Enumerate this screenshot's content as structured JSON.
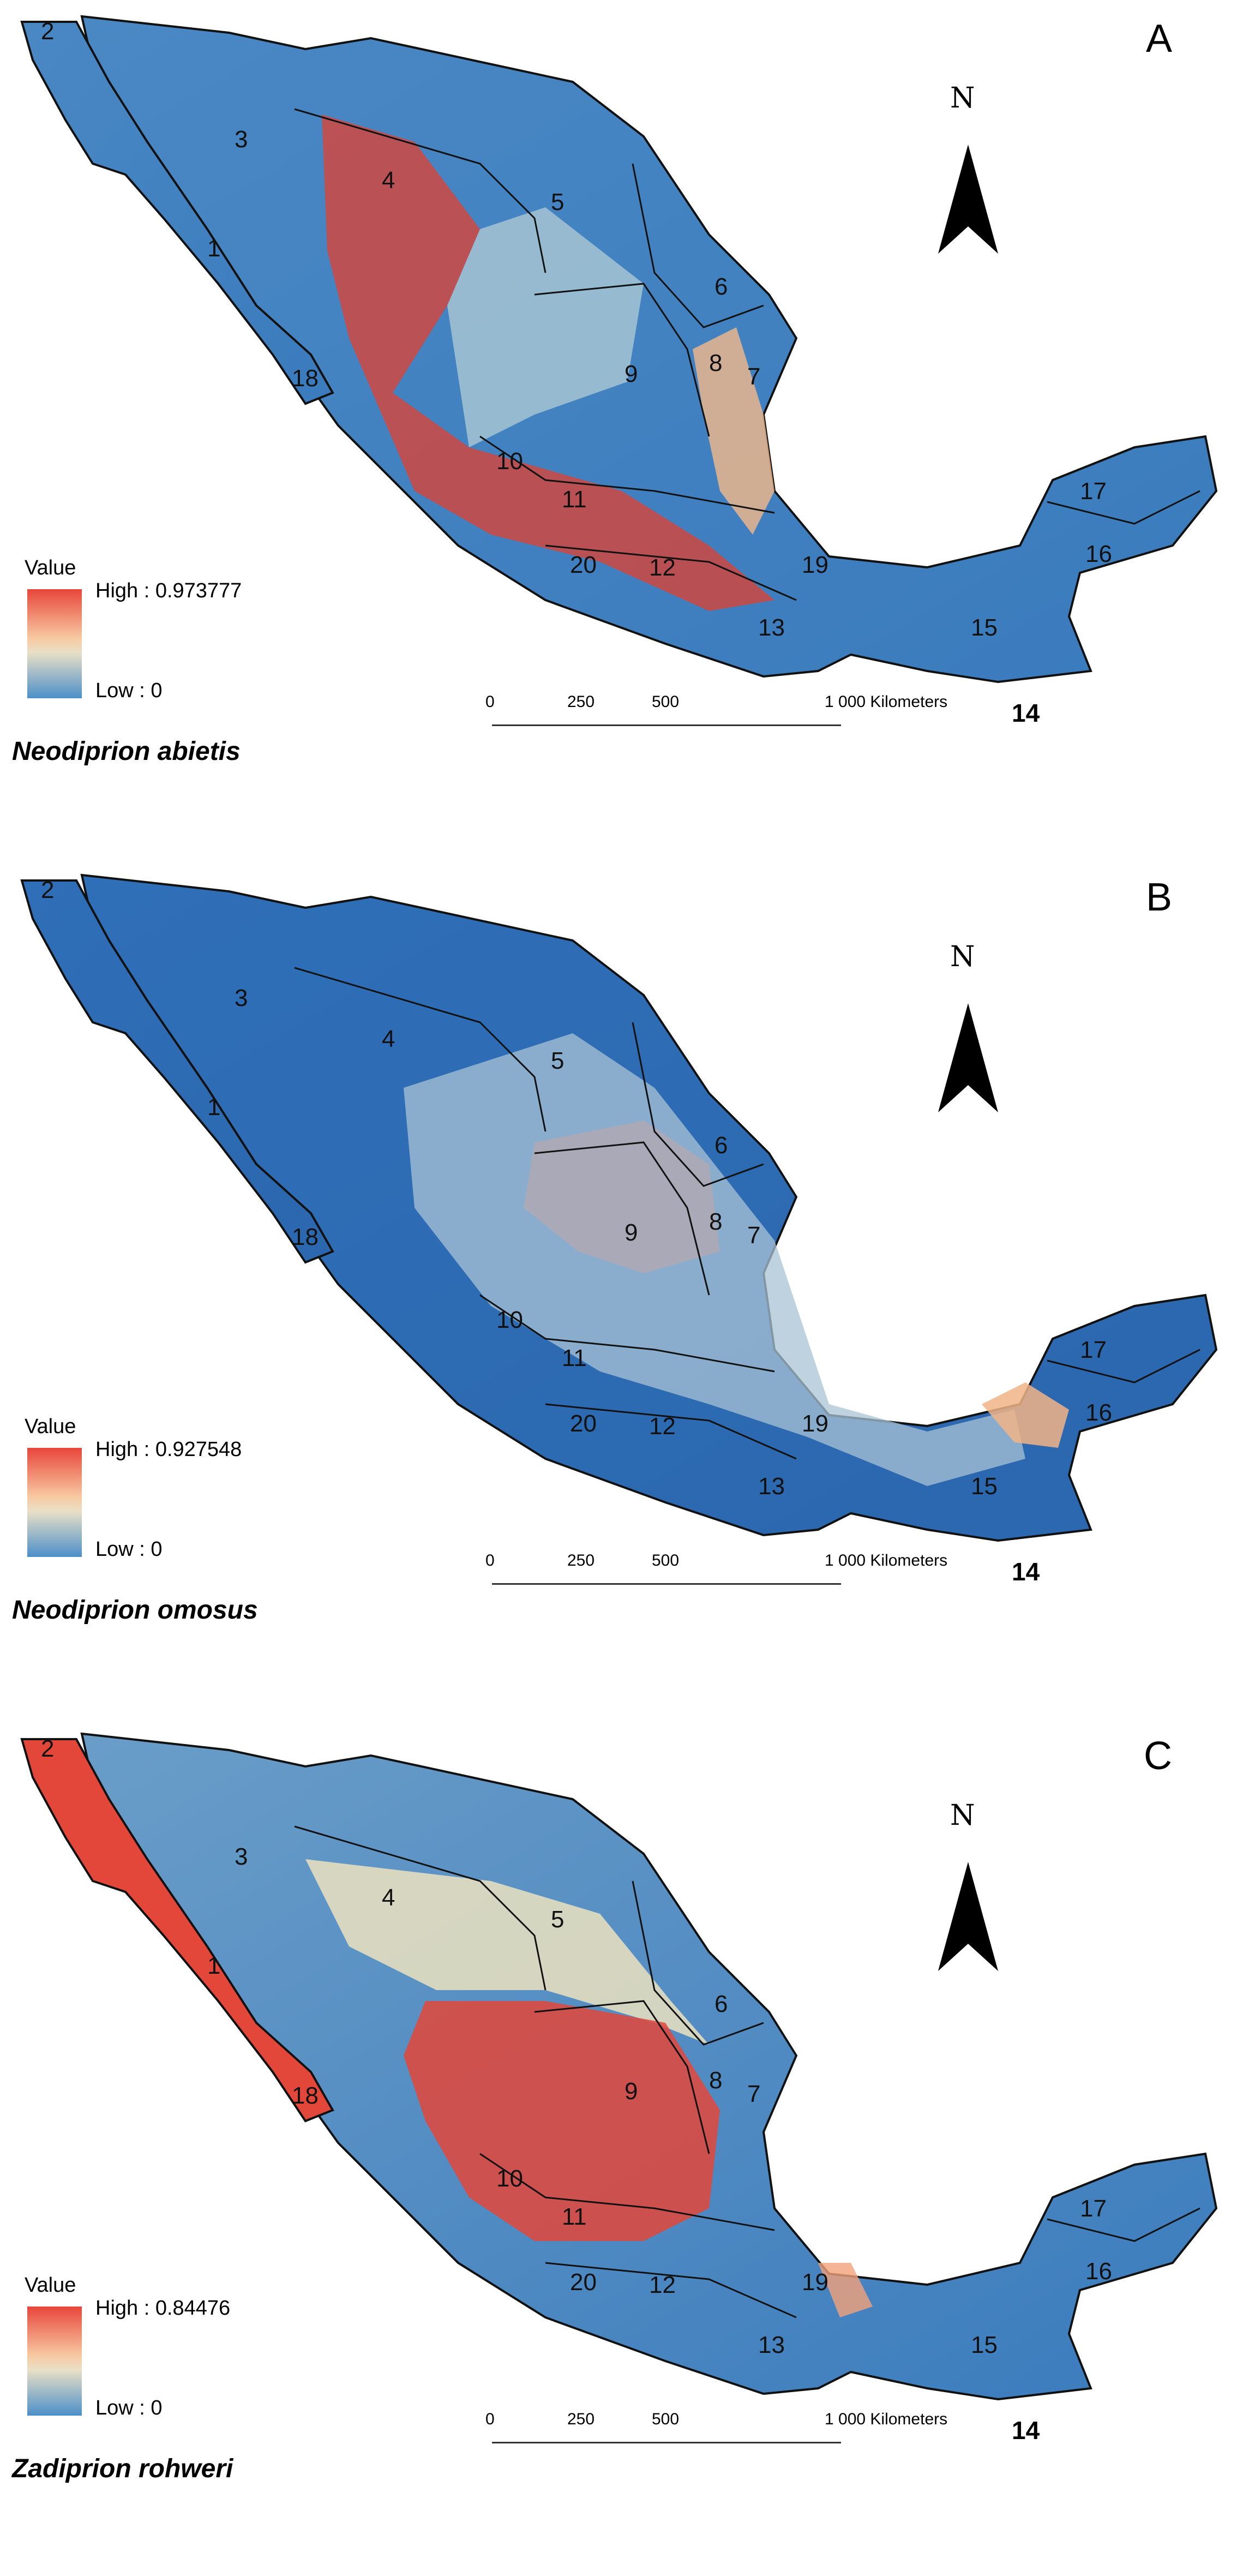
{
  "panels": [
    {
      "letter": "A",
      "species": "Neodiprion abietis",
      "legend": {
        "title": "Value",
        "high": "High : 0.973777",
        "low": "Low : 0"
      },
      "colors": {
        "base": "#3f7fc0",
        "mid": "#cfe0d8",
        "hot": "#e2402f",
        "warm": "#f4b98a"
      }
    },
    {
      "letter": "B",
      "species": "Neodiprion omosus",
      "legend": {
        "title": "Value",
        "high": "High : 0.927548",
        "low": "Low : 0"
      },
      "colors": {
        "base": "#2f6fb8",
        "mid": "#a9c3d6",
        "hot": "#e2563c",
        "warm": "#f1b487"
      }
    },
    {
      "letter": "C",
      "species": "Zadiprion rohweri",
      "legend": {
        "title": "Value",
        "high": "High : 0.84476",
        "low": "Low : 0"
      },
      "colors": {
        "base": "#3f7fc0",
        "mid": "#ebe2c0",
        "hot": "#e3473a",
        "warm": "#f2a27a"
      }
    }
  ],
  "north": {
    "label": "N"
  },
  "scale": {
    "ticks": [
      "0",
      "250",
      "500",
      "1 000 Kilometers"
    ]
  },
  "regions": [
    "1",
    "2",
    "3",
    "4",
    "5",
    "6",
    "7",
    "8",
    "9",
    "10",
    "11",
    "12",
    "13",
    "14",
    "15",
    "16",
    "17",
    "18",
    "19",
    "20"
  ]
}
